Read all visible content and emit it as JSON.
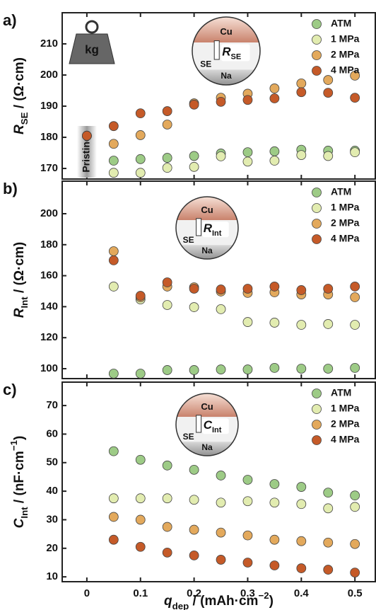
{
  "chart_data": [
    {
      "type": "scatter",
      "panel_label": "a)",
      "legend": "upper right",
      "ylabel": {
        "symbol": "R",
        "subscript": "SE",
        "unit": " / (Ω·cm)"
      },
      "x": [
        0,
        0.05,
        0.1,
        0.15,
        0.2,
        0.25,
        0.3,
        0.35,
        0.4,
        0.45,
        0.5
      ],
      "xlim": [
        -0.046,
        0.538
      ],
      "xticks": [
        0,
        0.1,
        0.2,
        0.3,
        0.4,
        0.5
      ],
      "ylim": [
        166.6,
        220
      ],
      "yticks": [
        170,
        180,
        190,
        200,
        210
      ],
      "series": [
        {
          "name": "ATM",
          "color": "#9dcb86",
          "values": [
            180.5,
            172.5,
            173,
            173.4,
            174,
            174.8,
            175.2,
            175.5,
            176,
            175.7,
            175.7
          ]
        },
        {
          "name": "1 MPa",
          "color": "#e2ecb0",
          "values": [
            180.5,
            168.6,
            168.6,
            170.2,
            170.5,
            173.9,
            172.2,
            172.5,
            174.3,
            174,
            175.2
          ]
        },
        {
          "name": "2 MPa",
          "color": "#e3a95c",
          "values": [
            180.5,
            177.9,
            180.7,
            184.1,
            190.9,
            192.7,
            194,
            195.7,
            197.3,
            198.4,
            199.8
          ]
        },
        {
          "name": "4 MPa",
          "color": "#c55a28",
          "values": [
            180.5,
            183.6,
            187.7,
            188.4,
            190.5,
            191.4,
            192,
            192.5,
            194.5,
            194.3,
            192.7
          ]
        }
      ],
      "annotations": {
        "pristine": "Pristine",
        "weight": "kg",
        "inset": {
          "top": "Cu",
          "middle": "SE",
          "bottom": "Na",
          "symbol": "R",
          "subscript": "SE"
        }
      }
    },
    {
      "type": "scatter",
      "panel_label": "b)",
      "legend": "upper right",
      "ylabel": {
        "symbol": "R",
        "subscript": "Int",
        "unit": " / (Ω·cm)"
      },
      "x": [
        0.05,
        0.1,
        0.15,
        0.2,
        0.25,
        0.3,
        0.35,
        0.4,
        0.45,
        0.5
      ],
      "xlim": [
        -0.046,
        0.538
      ],
      "xticks": [
        0,
        0.1,
        0.2,
        0.3,
        0.4,
        0.5
      ],
      "ylim": [
        93.6,
        221
      ],
      "yticks": [
        100,
        120,
        140,
        160,
        180,
        200
      ],
      "series": [
        {
          "name": "ATM",
          "color": "#9dcb86",
          "values": [
            96.8,
            96.8,
            99.1,
            99.1,
            99.5,
            99.5,
            100.5,
            100,
            100,
            100.5
          ]
        },
        {
          "name": "1 MPa",
          "color": "#e2ecb0",
          "values": [
            153,
            144.7,
            141.1,
            139.7,
            138.4,
            130.1,
            129.7,
            128.3,
            128.8,
            128.3
          ]
        },
        {
          "name": "2 MPa",
          "color": "#e3a95c",
          "values": [
            175.8,
            146.1,
            153,
            152.5,
            149.8,
            148.9,
            149.3,
            147.9,
            147.9,
            146.1
          ]
        },
        {
          "name": "4 MPa",
          "color": "#c55a28",
          "values": [
            169.9,
            147,
            155.7,
            151.6,
            151.1,
            151.6,
            153,
            150.7,
            151.6,
            153
          ]
        }
      ],
      "annotations": {
        "inset": {
          "top": "Cu",
          "middle": "SE",
          "bottom": "Na",
          "symbol": "R",
          "subscript": "Int"
        }
      }
    },
    {
      "type": "scatter",
      "panel_label": "c)",
      "legend": "upper right",
      "ylabel": {
        "symbol": "C",
        "subscript": "Int",
        "unit": " / (nF·cm",
        "exponent": "−1",
        "close": ")"
      },
      "xlabel": {
        "symbol": "q",
        "subscript": "dep",
        "unit": " / (mAh·cm",
        "exponent": "−2",
        "close": ")"
      },
      "x": [
        0.05,
        0.1,
        0.15,
        0.2,
        0.25,
        0.3,
        0.35,
        0.4,
        0.45,
        0.5
      ],
      "xlim": [
        -0.046,
        0.538
      ],
      "xticks": [
        0,
        0.1,
        0.2,
        0.3,
        0.4,
        0.5
      ],
      "ylim": [
        8.3,
        78.2
      ],
      "yticks": [
        10,
        20,
        30,
        40,
        50,
        60,
        70
      ],
      "series": [
        {
          "name": "ATM",
          "color": "#9dcb86",
          "values": [
            54,
            51,
            49,
            47.5,
            45.5,
            44,
            42.5,
            41.5,
            39.5,
            38.5
          ]
        },
        {
          "name": "1 MPa",
          "color": "#e2ecb0",
          "values": [
            37.5,
            37.5,
            37.5,
            37,
            36,
            36.5,
            36,
            35.5,
            34,
            34.5
          ]
        },
        {
          "name": "2 MPa",
          "color": "#e3a95c",
          "values": [
            31,
            30,
            27.5,
            26.5,
            25.5,
            24.5,
            23,
            22.5,
            22,
            21.5
          ]
        },
        {
          "name": "4 MPa",
          "color": "#c55a28",
          "values": [
            23,
            20.5,
            18.5,
            17.5,
            16,
            15,
            14,
            13,
            12.5,
            11.5
          ]
        }
      ],
      "annotations": {
        "inset": {
          "top": "Cu",
          "middle": "SE",
          "bottom": "Na",
          "symbol": "C",
          "subscript": "Int"
        }
      }
    }
  ]
}
